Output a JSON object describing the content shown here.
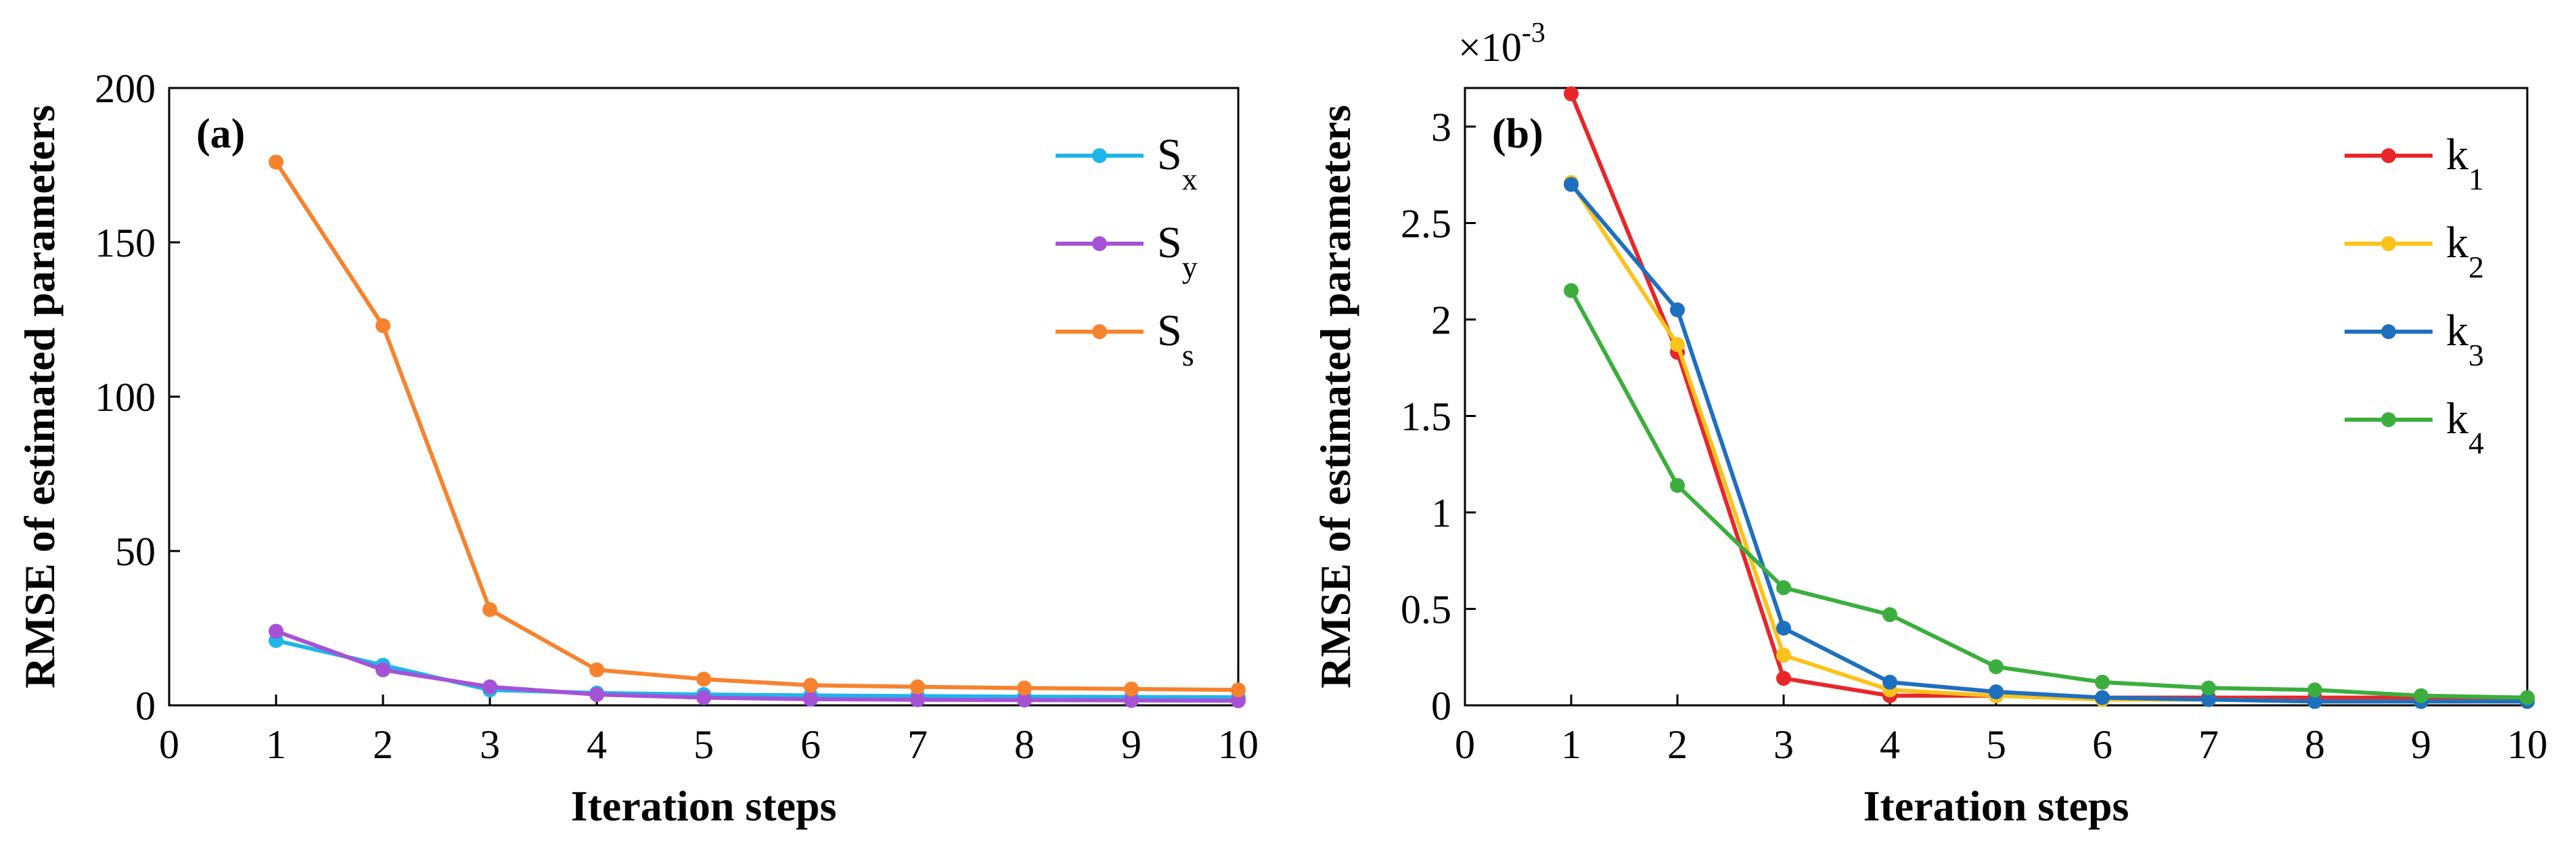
{
  "chart_data": [
    {
      "type": "line",
      "panel_label": "(a)",
      "xlabel": "Iteration steps",
      "ylabel": "RMSE of estimated parameters",
      "xlim": [
        0,
        10
      ],
      "ylim": [
        0,
        200
      ],
      "xticks": [
        "0",
        "1",
        "2",
        "3",
        "4",
        "5",
        "6",
        "7",
        "8",
        "9",
        "10"
      ],
      "yticks": [
        "0",
        "50",
        "100",
        "150",
        "200"
      ],
      "y_exponent": "",
      "legend_position": "top-right",
      "x": [
        1,
        2,
        3,
        4,
        5,
        6,
        7,
        8,
        9,
        10
      ],
      "series": [
        {
          "name": "S",
          "subscript": "x",
          "color": "#1FB5E8",
          "values": [
            21,
            13,
            5,
            4,
            3.5,
            3.2,
            3.0,
            2.8,
            2.7,
            2.6
          ]
        },
        {
          "name": "S",
          "subscript": "y",
          "color": "#A552D6",
          "values": [
            24,
            11.5,
            6,
            3.5,
            2.5,
            2.0,
            1.8,
            1.7,
            1.6,
            1.5
          ]
        },
        {
          "name": "S",
          "subscript": "s",
          "color": "#F7822E",
          "values": [
            176,
            123,
            31,
            11.5,
            8.5,
            6.5,
            6.0,
            5.6,
            5.3,
            5.0
          ]
        }
      ]
    },
    {
      "type": "line",
      "panel_label": "(b)",
      "xlabel": "Iteration steps",
      "ylabel": "RMSE of estimated parameters",
      "xlim": [
        0,
        10
      ],
      "ylim": [
        0,
        3.2
      ],
      "xticks": [
        "0",
        "1",
        "2",
        "3",
        "4",
        "5",
        "6",
        "7",
        "8",
        "9",
        "10"
      ],
      "yticks": [
        "0",
        "0.5",
        "1",
        "1.5",
        "2",
        "2.5",
        "3"
      ],
      "y_exponent": "-3",
      "y_exponent_prefix": "×10",
      "legend_position": "top-right",
      "x": [
        1,
        2,
        3,
        4,
        5,
        6,
        7,
        8,
        9,
        10
      ],
      "series": [
        {
          "name": "k",
          "subscript": "1",
          "color": "#E8262A",
          "values": [
            3.17,
            1.83,
            0.14,
            0.05,
            0.05,
            0.04,
            0.04,
            0.04,
            0.04,
            0.03
          ]
        },
        {
          "name": "k",
          "subscript": "2",
          "color": "#FBC21B",
          "values": [
            2.71,
            1.87,
            0.26,
            0.08,
            0.05,
            0.03,
            0.03,
            0.02,
            0.02,
            0.02
          ]
        },
        {
          "name": "k",
          "subscript": "3",
          "color": "#1F6FBF",
          "values": [
            2.7,
            2.05,
            0.4,
            0.12,
            0.07,
            0.04,
            0.03,
            0.02,
            0.02,
            0.02
          ]
        },
        {
          "name": "k",
          "subscript": "4",
          "color": "#3CAE3E",
          "values": [
            2.15,
            1.14,
            0.61,
            0.47,
            0.2,
            0.12,
            0.09,
            0.08,
            0.05,
            0.04
          ]
        }
      ]
    }
  ]
}
